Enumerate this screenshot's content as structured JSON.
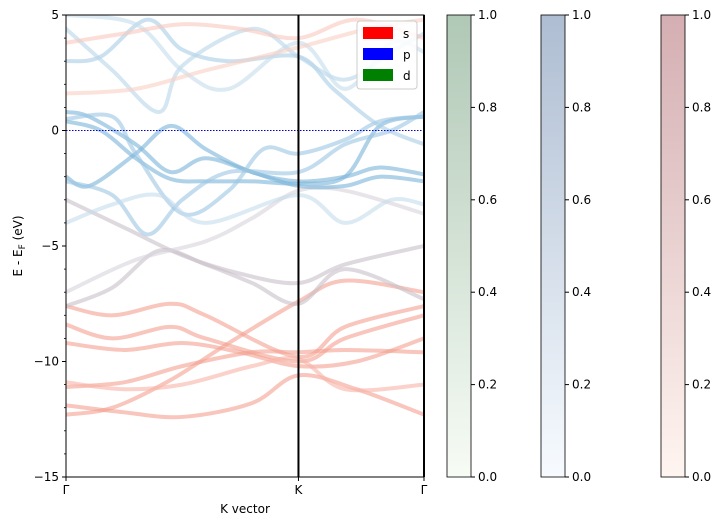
{
  "chart_data": [
    {
      "type": "line",
      "title": "",
      "xlabel": "K vector",
      "ylabel": "E - E_F (eV)",
      "ylabel_main": "E - E",
      "ylabel_sub": "F",
      "ylabel_tail": " (eV)",
      "ylim": [
        -15,
        5
      ],
      "xlim": [
        0,
        1.54
      ],
      "x_ticks": [
        {
          "value": 0,
          "label": "Γ"
        },
        {
          "value": 1.0,
          "label": "K"
        },
        {
          "value": 1.54,
          "label": "Γ"
        }
      ],
      "y_ticks": [
        {
          "value": 5,
          "label": "5"
        },
        {
          "value": 0,
          "label": "0"
        },
        {
          "value": -5,
          "label": "−5"
        },
        {
          "value": -10,
          "label": "−10"
        },
        {
          "value": -15,
          "label": "−15"
        }
      ],
      "fermi_level": 0,
      "vertical_lines": [
        1.0,
        1.54
      ],
      "legend": [
        {
          "label": "s",
          "color": "#ff0000"
        },
        {
          "label": "p",
          "color": "#0000ff"
        },
        {
          "label": "d",
          "color": "#008000"
        }
      ],
      "legend_position": "top-right",
      "grid": false,
      "series": [
        {
          "color": "#f4a090",
          "x": [
            0,
            0.2,
            0.45,
            0.6,
            1.0,
            1.2,
            1.54
          ],
          "y": [
            -7.6,
            -8.0,
            -7.5,
            -8.0,
            -9.8,
            -8.5,
            -7.6
          ]
        },
        {
          "color": "#f4a090",
          "x": [
            0,
            0.2,
            0.45,
            0.6,
            1.0,
            1.2,
            1.54
          ],
          "y": [
            -8.4,
            -9.0,
            -8.5,
            -9.0,
            -10.0,
            -9.0,
            -8.0
          ]
        },
        {
          "color": "#f4a090",
          "x": [
            0,
            0.25,
            0.5,
            0.75,
            1.0,
            1.25,
            1.54
          ],
          "y": [
            -9.2,
            -9.5,
            -9.2,
            -9.6,
            -10.2,
            -10.0,
            -9.0
          ]
        },
        {
          "color": "#f4a090",
          "x": [
            0,
            0.25,
            0.5,
            0.8,
            1.0,
            1.2,
            1.54
          ],
          "y": [
            -11.1,
            -10.9,
            -10.2,
            -9.6,
            -9.6,
            -9.5,
            -9.6
          ]
        },
        {
          "color": "#f4a090",
          "x": [
            0,
            0.2,
            0.45,
            0.7,
            1.0,
            1.2,
            1.54
          ],
          "y": [
            -12.3,
            -12.0,
            -10.8,
            -9.2,
            -7.4,
            -6.5,
            -7.0
          ]
        },
        {
          "color": "#f4a090",
          "x": [
            0,
            0.25,
            0.5,
            0.8,
            1.0,
            1.25,
            1.54
          ],
          "y": [
            -11.9,
            -12.2,
            -12.4,
            -11.8,
            -10.6,
            -11.2,
            -12.3
          ]
        },
        {
          "color": "#f8b4a8",
          "x": [
            0,
            0.25,
            0.5,
            0.8,
            1.0,
            1.2,
            1.54
          ],
          "y": [
            -10.9,
            -11.2,
            -11.0,
            -10.2,
            -9.9,
            -11.2,
            -11.0
          ]
        },
        {
          "color": "#c8c0c8",
          "x": [
            0,
            0.2,
            0.4,
            0.6,
            0.8,
            1.0,
            1.2,
            1.54
          ],
          "y": [
            -7.6,
            -6.8,
            -5.2,
            -5.8,
            -6.6,
            -7.5,
            -6.0,
            -7.3
          ]
        },
        {
          "color": "#c8c0c8",
          "x": [
            0,
            0.25,
            0.5,
            0.75,
            1.0,
            1.2,
            1.54
          ],
          "y": [
            -3.0,
            -4.2,
            -5.4,
            -6.2,
            -6.6,
            -5.8,
            -5.0
          ]
        },
        {
          "color": "#d8d4dc",
          "x": [
            0,
            0.3,
            0.6,
            0.8,
            1.0,
            1.2,
            1.54
          ],
          "y": [
            -7.0,
            -5.6,
            -4.8,
            -3.8,
            -2.6,
            -2.6,
            -3.6
          ]
        },
        {
          "color": "#7ab4d8",
          "x": [
            0,
            0.1,
            0.3,
            0.45,
            0.6,
            0.8,
            1.0,
            1.2,
            1.35,
            1.54
          ],
          "y": [
            -2.0,
            -2.4,
            -1.0,
            0.2,
            -0.8,
            -1.8,
            -2.2,
            -2.0,
            -1.6,
            -1.9
          ]
        },
        {
          "color": "#7ab4d8",
          "x": [
            0,
            0.1,
            0.3,
            0.45,
            0.6,
            0.8,
            1.0,
            1.2,
            1.35,
            1.54
          ],
          "y": [
            0.8,
            0.6,
            -0.6,
            -1.8,
            -1.2,
            -1.8,
            -2.4,
            -2.4,
            -2.0,
            -2.2
          ]
        },
        {
          "color": "#7ab4d8",
          "x": [
            0,
            0.15,
            0.3,
            0.45,
            0.6,
            0.8,
            1.0,
            1.2,
            1.35,
            1.54
          ],
          "y": [
            0.4,
            0.0,
            -1.2,
            -2.1,
            -2.2,
            -2.2,
            -2.3,
            -2.0,
            0.2,
            0.6
          ]
        },
        {
          "color": "#9cc6e2",
          "x": [
            0,
            0.2,
            0.35,
            0.5,
            0.7,
            1.0,
            1.2,
            1.4,
            1.54
          ],
          "y": [
            -2.2,
            -2.8,
            -4.5,
            -3.0,
            -1.8,
            -1.8,
            -0.6,
            0.0,
            0.8
          ]
        },
        {
          "color": "#9cc6e2",
          "x": [
            0,
            0.2,
            0.3,
            0.5,
            0.7,
            0.85,
            1.0,
            1.2,
            1.35,
            1.54
          ],
          "y": [
            0.5,
            0.6,
            -1.0,
            -3.6,
            -2.6,
            -0.8,
            -1.0,
            -0.4,
            0.4,
            0.6
          ]
        },
        {
          "color": "#a8cde4",
          "x": [
            0,
            0.15,
            0.35,
            0.5,
            0.7,
            1.0,
            1.15,
            1.35,
            1.54
          ],
          "y": [
            3.0,
            3.2,
            4.8,
            3.5,
            3.0,
            3.2,
            1.8,
            0.2,
            -0.6
          ]
        },
        {
          "color": "#b8d6ea",
          "x": [
            0,
            0.2,
            0.4,
            0.5,
            0.8,
            1.0,
            1.2,
            1.4,
            1.54
          ],
          "y": [
            4.4,
            2.6,
            0.8,
            2.8,
            4.4,
            3.2,
            2.2,
            3.4,
            4.2
          ]
        },
        {
          "color": "#c4dcec",
          "x": [
            0,
            0.3,
            0.5,
            0.7,
            1.0,
            1.2,
            1.4,
            1.54
          ],
          "y": [
            5.0,
            4.6,
            2.6,
            1.8,
            3.8,
            1.8,
            3.8,
            3.4
          ]
        },
        {
          "color": "#c4dcec",
          "x": [
            0,
            0.2,
            0.4,
            0.6,
            1.0,
            1.2,
            1.4,
            1.54
          ],
          "y": [
            -4.0,
            -3.2,
            -2.8,
            -4.0,
            -2.8,
            -4.0,
            -3.0,
            -3.2
          ]
        },
        {
          "color": "#f8c8bc",
          "x": [
            0,
            0.25,
            0.5,
            0.75,
            1.0,
            1.25,
            1.54
          ],
          "y": [
            3.8,
            4.2,
            4.6,
            4.4,
            4.0,
            4.8,
            4.0
          ]
        },
        {
          "color": "#f8d0c4",
          "x": [
            0,
            0.3,
            0.6,
            1.0,
            1.3,
            1.54
          ],
          "y": [
            1.6,
            1.8,
            2.6,
            3.6,
            4.4,
            4.8
          ]
        }
      ]
    },
    {
      "type": "heatmap",
      "colorbar": "green",
      "color_low": "#f7fcf5",
      "color_high": "#b0c8b6",
      "range": [
        0,
        1
      ],
      "tick_labels": [
        "0.0",
        "0.2",
        "0.4",
        "0.6",
        "0.8",
        "1.0"
      ],
      "tick_values": [
        0,
        0.2,
        0.4,
        0.6,
        0.8,
        1.0
      ]
    },
    {
      "type": "heatmap",
      "colorbar": "blue",
      "color_low": "#f7fbff",
      "color_high": "#aebdd2",
      "range": [
        0,
        1
      ],
      "tick_labels": [
        "0.0",
        "0.2",
        "0.4",
        "0.6",
        "0.8",
        "1.0"
      ],
      "tick_values": [
        0,
        0.2,
        0.4,
        0.6,
        0.8,
        1.0
      ]
    },
    {
      "type": "heatmap",
      "colorbar": "red",
      "color_low": "#fff5f0",
      "color_high": "#d4aeb2",
      "range": [
        0,
        1
      ],
      "tick_labels": [
        "0.0",
        "0.2",
        "0.4",
        "0.6",
        "0.8",
        "1.0"
      ],
      "tick_values": [
        0,
        0.2,
        0.4,
        0.6,
        0.8,
        1.0
      ]
    }
  ]
}
